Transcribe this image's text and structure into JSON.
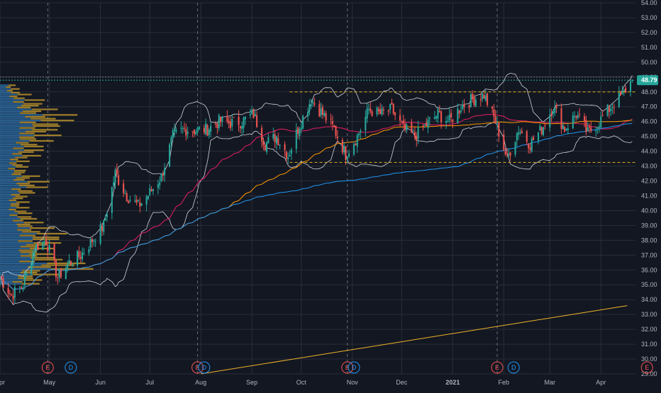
{
  "chart_data": {
    "type": "candlestick",
    "title": "",
    "price_axis": {
      "min": 29.0,
      "max": 54.0,
      "step": 1.0,
      "ticks": [
        "29.00",
        "30.00",
        "31.00",
        "32.00",
        "33.00",
        "34.00",
        "35.00",
        "36.00",
        "37.00",
        "38.00",
        "39.00",
        "40.00",
        "41.00",
        "42.00",
        "43.00",
        "44.00",
        "45.00",
        "46.00",
        "47.00",
        "48.00",
        "49.00",
        "50.00",
        "51.00",
        "52.00",
        "53.00",
        "54.00"
      ]
    },
    "last_price": {
      "label": "48.79",
      "value": 48.79,
      "color": "#26a69a"
    },
    "time_axis": {
      "start": "2020-04-01",
      "end": "2021-04-22",
      "ticks": [
        {
          "label": "Apr",
          "date": "2020-04-01"
        },
        {
          "label": "May",
          "date": "2020-05-01"
        },
        {
          "label": "Jun",
          "date": "2020-06-01"
        },
        {
          "label": "Jul",
          "date": "2020-07-01"
        },
        {
          "label": "Aug",
          "date": "2020-08-01"
        },
        {
          "label": "Sep",
          "date": "2020-09-01"
        },
        {
          "label": "Oct",
          "date": "2020-10-01"
        },
        {
          "label": "Nov",
          "date": "2020-11-01"
        },
        {
          "label": "Dec",
          "date": "2020-12-01"
        },
        {
          "label": "2021",
          "date": "2021-01-01",
          "bold": true
        },
        {
          "label": "Feb",
          "date": "2021-02-01"
        },
        {
          "label": "Mar",
          "date": "2021-03-01"
        },
        {
          "label": "Apr",
          "date": "2021-04-01"
        }
      ]
    },
    "price_anchors": [
      {
        "date": "2020-04-01",
        "price": 35.5
      },
      {
        "date": "2020-04-08",
        "price": 34.3
      },
      {
        "date": "2020-04-15",
        "price": 35.0
      },
      {
        "date": "2020-04-22",
        "price": 37.5
      },
      {
        "date": "2020-04-29",
        "price": 38.0
      },
      {
        "date": "2020-05-06",
        "price": 35.5
      },
      {
        "date": "2020-05-13",
        "price": 36.5
      },
      {
        "date": "2020-05-20",
        "price": 37.0
      },
      {
        "date": "2020-05-27",
        "price": 38.0
      },
      {
        "date": "2020-06-03",
        "price": 39.0
      },
      {
        "date": "2020-06-10",
        "price": 42.5
      },
      {
        "date": "2020-06-17",
        "price": 41.0
      },
      {
        "date": "2020-06-24",
        "price": 40.3
      },
      {
        "date": "2020-07-01",
        "price": 41.2
      },
      {
        "date": "2020-07-08",
        "price": 42.3
      },
      {
        "date": "2020-07-15",
        "price": 45.0
      },
      {
        "date": "2020-07-22",
        "price": 45.5
      },
      {
        "date": "2020-07-29",
        "price": 45.4
      },
      {
        "date": "2020-08-05",
        "price": 45.5
      },
      {
        "date": "2020-08-12",
        "price": 46.0
      },
      {
        "date": "2020-08-19",
        "price": 45.9
      },
      {
        "date": "2020-08-26",
        "price": 46.0
      },
      {
        "date": "2020-09-02",
        "price": 46.5
      },
      {
        "date": "2020-09-09",
        "price": 44.5
      },
      {
        "date": "2020-09-16",
        "price": 45.0
      },
      {
        "date": "2020-09-23",
        "price": 43.7
      },
      {
        "date": "2020-09-30",
        "price": 45.8
      },
      {
        "date": "2020-10-07",
        "price": 47.5
      },
      {
        "date": "2020-10-14",
        "price": 46.5
      },
      {
        "date": "2020-10-21",
        "price": 45.5
      },
      {
        "date": "2020-10-28",
        "price": 43.8
      },
      {
        "date": "2020-11-04",
        "price": 45.0
      },
      {
        "date": "2020-11-11",
        "price": 46.8
      },
      {
        "date": "2020-11-18",
        "price": 46.5
      },
      {
        "date": "2020-11-25",
        "price": 46.8
      },
      {
        "date": "2020-12-02",
        "price": 45.5
      },
      {
        "date": "2020-12-09",
        "price": 45.0
      },
      {
        "date": "2020-12-16",
        "price": 45.8
      },
      {
        "date": "2020-12-23",
        "price": 46.5
      },
      {
        "date": "2020-12-30",
        "price": 46.0
      },
      {
        "date": "2021-01-06",
        "price": 47.0
      },
      {
        "date": "2021-01-13",
        "price": 47.5
      },
      {
        "date": "2021-01-20",
        "price": 47.8
      },
      {
        "date": "2021-01-27",
        "price": 46.0
      },
      {
        "date": "2021-02-03",
        "price": 43.5
      },
      {
        "date": "2021-02-10",
        "price": 45.5
      },
      {
        "date": "2021-02-17",
        "price": 44.5
      },
      {
        "date": "2021-02-24",
        "price": 45.5
      },
      {
        "date": "2021-03-03",
        "price": 47.0
      },
      {
        "date": "2021-03-10",
        "price": 45.5
      },
      {
        "date": "2021-03-17",
        "price": 46.5
      },
      {
        "date": "2021-03-24",
        "price": 45.2
      },
      {
        "date": "2021-03-31",
        "price": 46.0
      },
      {
        "date": "2021-04-07",
        "price": 47.0
      },
      {
        "date": "2021-04-14",
        "price": 47.8
      },
      {
        "date": "2021-04-20",
        "price": 48.79
      }
    ],
    "colors": {
      "background": "#131722",
      "grid": "#2a2e39",
      "text": "#b2b5be",
      "up": "#26a69a",
      "down": "#ef5350",
      "upper_band": "#d1d4dc",
      "ma_fast": "#e91e63",
      "ma_mid": "#ff9800",
      "ma_slow": "#2196f3",
      "channel": "#e0b11f",
      "trendline": "#f0b429",
      "volume_profile_dark": "#1f4e79",
      "volume_profile_light": "#2e6da4",
      "volume_profile_gold": "#b8902b"
    },
    "series": [
      {
        "type": "candles",
        "color_up": "#26a69a",
        "color_down": "#ef5350"
      },
      {
        "type": "line",
        "color": "#d1d4dc"
      },
      {
        "type": "line",
        "color": "#e91e63"
      },
      {
        "type": "line",
        "color": "#ff9800"
      },
      {
        "type": "line",
        "color": "#2196f3"
      }
    ],
    "horizontal_levels": [
      {
        "price": 48.0,
        "style": "dashed",
        "color": "#e0b11f",
        "from": "2020-09-24",
        "to": "2021-04-22"
      },
      {
        "price": 43.25,
        "style": "dashed",
        "color": "#e0b11f",
        "from": "2020-09-24",
        "to": "2021-04-22"
      },
      {
        "price": 48.79,
        "style": "dotted",
        "color": "#26a69a",
        "from": "2020-04-01",
        "to": "2021-04-22"
      },
      {
        "price": 49.0,
        "style": "dotted",
        "color": "#787b86",
        "from": "2020-04-01",
        "to": "2021-04-22"
      }
    ],
    "trendline": {
      "from": {
        "date": "2020-08-01",
        "price": 29.0
      },
      "to": {
        "date": "2021-04-17",
        "price": 33.6
      },
      "color": "#f0b429"
    },
    "events": [
      {
        "label": "E",
        "date": "2020-04-30",
        "type": "earnings"
      },
      {
        "label": "D",
        "date": "2020-05-14",
        "type": "dividend"
      },
      {
        "label": "E",
        "date": "2020-07-30",
        "type": "earnings"
      },
      {
        "label": "D",
        "date": "2020-08-03",
        "type": "dividend"
      },
      {
        "label": "E",
        "date": "2020-10-29",
        "type": "earnings"
      },
      {
        "label": "D",
        "date": "2020-11-02",
        "type": "dividend"
      },
      {
        "label": "E",
        "date": "2021-01-28",
        "type": "earnings"
      },
      {
        "label": "D",
        "date": "2021-02-07",
        "type": "dividend"
      },
      {
        "label": "E",
        "date": "2021-04-29",
        "type": "earnings"
      }
    ],
    "volume_profile": {
      "bins": [
        {
          "price": 35.0,
          "volume": 0.45
        },
        {
          "price": 35.5,
          "volume": 0.6
        },
        {
          "price": 36.0,
          "volume": 0.95
        },
        {
          "price": 36.5,
          "volume": 0.7
        },
        {
          "price": 37.0,
          "volume": 0.55
        },
        {
          "price": 37.5,
          "volume": 0.65
        },
        {
          "price": 38.0,
          "volume": 0.7
        },
        {
          "price": 38.5,
          "volume": 0.55
        },
        {
          "price": 39.0,
          "volume": 0.45
        },
        {
          "price": 39.5,
          "volume": 0.35
        },
        {
          "price": 40.0,
          "volume": 0.3
        },
        {
          "price": 40.5,
          "volume": 0.3
        },
        {
          "price": 41.0,
          "volume": 0.4
        },
        {
          "price": 41.5,
          "volume": 0.5
        },
        {
          "price": 42.0,
          "volume": 0.42
        },
        {
          "price": 42.5,
          "volume": 0.3
        },
        {
          "price": 43.0,
          "volume": 0.3
        },
        {
          "price": 43.5,
          "volume": 0.42
        },
        {
          "price": 44.0,
          "volume": 0.48
        },
        {
          "price": 44.5,
          "volume": 0.55
        },
        {
          "price": 45.0,
          "volume": 0.62
        },
        {
          "price": 45.5,
          "volume": 0.7
        },
        {
          "price": 46.0,
          "volume": 0.78
        },
        {
          "price": 46.5,
          "volume": 0.6
        },
        {
          "price": 47.0,
          "volume": 0.48
        },
        {
          "price": 47.5,
          "volume": 0.32
        },
        {
          "price": 48.0,
          "volume": 0.2
        }
      ]
    }
  }
}
